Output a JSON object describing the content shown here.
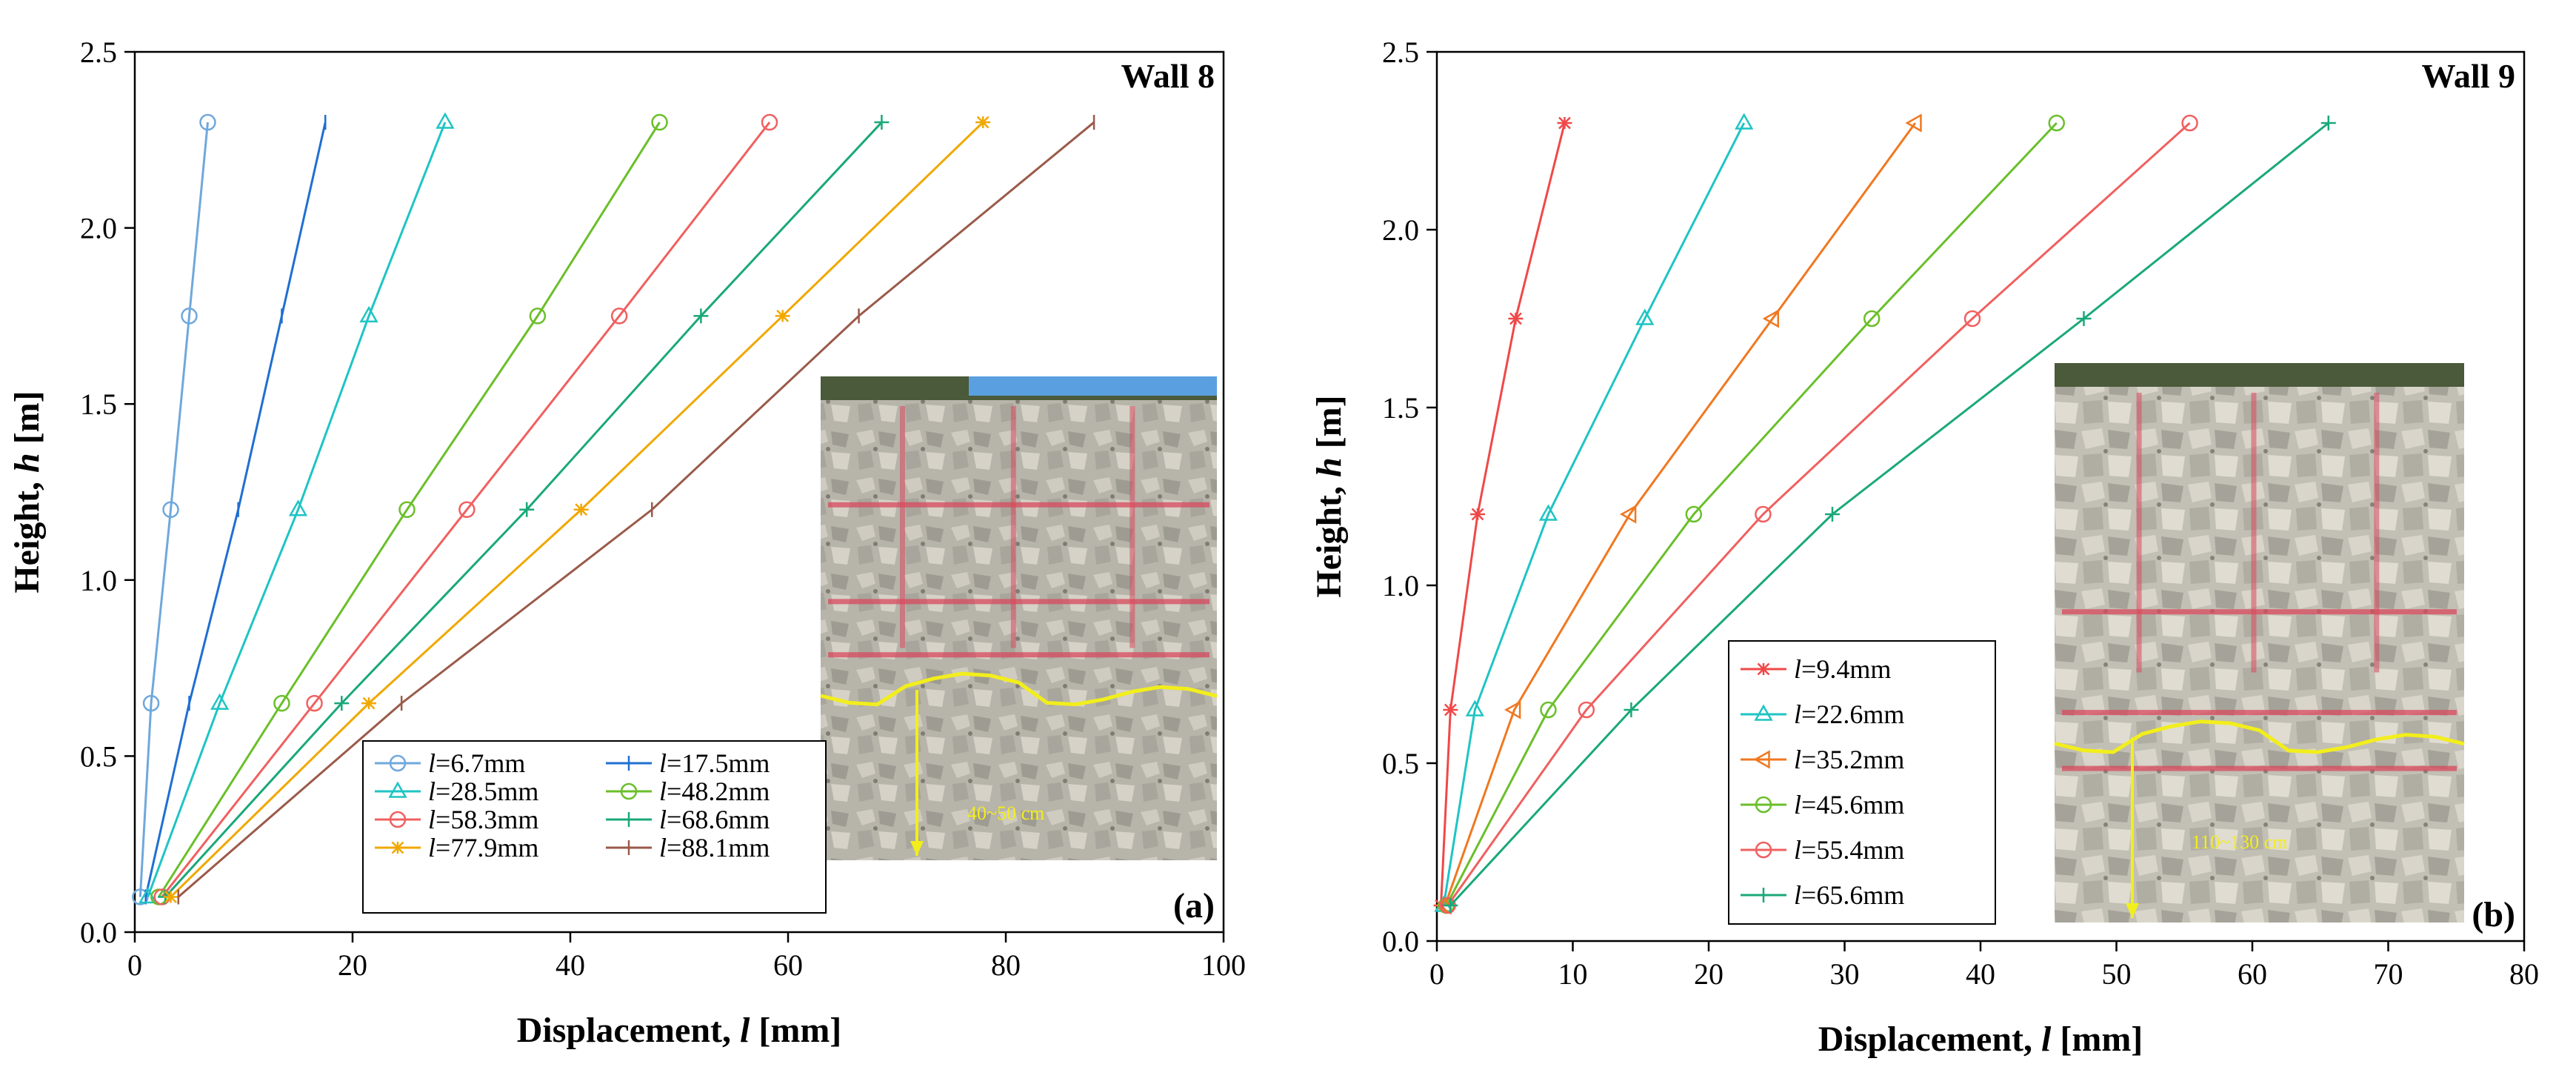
{
  "chart_data": [
    {
      "type": "line",
      "panel_label": "(a)",
      "wall_label": "Wall 8",
      "xlabel_main": "Displacement, ",
      "xlabel_var": "l",
      "xlabel_unit": " [mm]",
      "ylabel_main": "Height, ",
      "ylabel_var": "h",
      "ylabel_unit": " [m]",
      "xlim": [
        0,
        100
      ],
      "ylim": [
        0,
        2.5
      ],
      "xticks": [
        0,
        20,
        40,
        60,
        80,
        100
      ],
      "xtick_labels": [
        "0",
        "20",
        "40",
        "60",
        "80",
        "100"
      ],
      "yticks": [
        0,
        0.5,
        1.0,
        1.5,
        2.0,
        2.5
      ],
      "ytick_labels": [
        "0.0",
        "0.5",
        "1.0",
        "1.5",
        "2.0",
        "2.5"
      ],
      "legend_position": "lower-center",
      "legend_columns": 2,
      "inset_annotation": "40~50 cm",
      "heights": [
        0.1,
        0.65,
        1.2,
        1.75,
        2.3
      ],
      "series": [
        {
          "name": "l=6.7mm",
          "var": "l",
          "value": "=6.7mm",
          "color": "#6fa8dc",
          "marker": "circle",
          "x": [
            0.5,
            1.5,
            3.3,
            5.0,
            6.7
          ]
        },
        {
          "name": "l=17.5mm",
          "var": "l",
          "value": "=17.5mm",
          "color": "#1f6fd1",
          "marker": "bar",
          "x": [
            1.0,
            5.0,
            9.5,
            13.5,
            17.5
          ]
        },
        {
          "name": "l=28.5mm",
          "var": "l",
          "value": "=28.5mm",
          "color": "#1fc4c4",
          "marker": "triangle",
          "x": [
            1.2,
            7.8,
            15.0,
            21.5,
            28.5
          ]
        },
        {
          "name": "l=48.2mm",
          "var": "l",
          "value": "=48.2mm",
          "color": "#6abf2a",
          "marker": "circle",
          "x": [
            2.2,
            13.5,
            25.0,
            37.0,
            48.2
          ]
        },
        {
          "name": "l=58.3mm",
          "var": "l",
          "value": "=58.3mm",
          "color": "#f06060",
          "marker": "circle",
          "x": [
            2.5,
            16.5,
            30.5,
            44.5,
            58.3
          ]
        },
        {
          "name": "l=68.6mm",
          "var": "l",
          "value": "=68.6mm",
          "color": "#1aa87a",
          "marker": "plus",
          "x": [
            2.8,
            19.0,
            36.0,
            52.0,
            68.6
          ]
        },
        {
          "name": "l=77.9mm",
          "var": "l",
          "value": "=77.9mm",
          "color": "#f0a800",
          "marker": "star",
          "x": [
            3.3,
            21.5,
            41.0,
            59.5,
            77.9
          ]
        },
        {
          "name": "l=88.1mm",
          "var": "l",
          "value": "=88.1mm",
          "color": "#9a5a4a",
          "marker": "bar",
          "x": [
            4.0,
            24.5,
            47.5,
            66.5,
            88.1
          ]
        }
      ]
    },
    {
      "type": "line",
      "panel_label": "(b)",
      "wall_label": "Wall 9",
      "xlabel_main": "Displacement, ",
      "xlabel_var": "l",
      "xlabel_unit": " [mm]",
      "ylabel_main": "Height, ",
      "ylabel_var": "h",
      "ylabel_unit": " [m]",
      "xlim": [
        0,
        80
      ],
      "ylim": [
        0,
        2.5
      ],
      "xticks": [
        0,
        10,
        20,
        30,
        40,
        50,
        60,
        70,
        80
      ],
      "xtick_labels": [
        "0",
        "10",
        "20",
        "30",
        "40",
        "50",
        "60",
        "70",
        "80"
      ],
      "yticks": [
        0,
        0.5,
        1.0,
        1.5,
        2.0,
        2.5
      ],
      "ytick_labels": [
        "0.0",
        "0.5",
        "1.0",
        "1.5",
        "2.0",
        "2.5"
      ],
      "legend_position": "lower-center-left",
      "legend_columns": 1,
      "inset_annotation": "110~130 cm",
      "heights": [
        0.1,
        0.65,
        1.2,
        1.75,
        2.3
      ],
      "series": [
        {
          "name": "l=9.4mm",
          "var": "l",
          "value": "=9.4mm",
          "color": "#f04848",
          "marker": "star",
          "x": [
            0.3,
            1.0,
            3.0,
            5.8,
            9.4
          ]
        },
        {
          "name": "l=22.6mm",
          "var": "l",
          "value": "=22.6mm",
          "color": "#1fc4c4",
          "marker": "triangle",
          "x": [
            0.5,
            2.8,
            8.2,
            15.3,
            22.6
          ]
        },
        {
          "name": "l=35.2mm",
          "var": "l",
          "value": "=35.2mm",
          "color": "#f07820",
          "marker": "triangle-left",
          "x": [
            0.6,
            5.7,
            14.2,
            24.7,
            35.2
          ]
        },
        {
          "name": "l=45.6mm",
          "var": "l",
          "value": "=45.6mm",
          "color": "#6abf2a",
          "marker": "circle",
          "x": [
            0.7,
            8.2,
            18.9,
            32.0,
            45.6
          ]
        },
        {
          "name": "l=55.4mm",
          "var": "l",
          "value": "=55.4mm",
          "color": "#f06060",
          "marker": "circle",
          "x": [
            0.8,
            11.0,
            24.0,
            39.4,
            55.4
          ]
        },
        {
          "name": "l=65.6mm",
          "var": "l",
          "value": "=65.6mm",
          "color": "#1aa87a",
          "marker": "plus",
          "x": [
            1.0,
            14.3,
            29.1,
            47.6,
            65.6
          ]
        }
      ]
    }
  ]
}
